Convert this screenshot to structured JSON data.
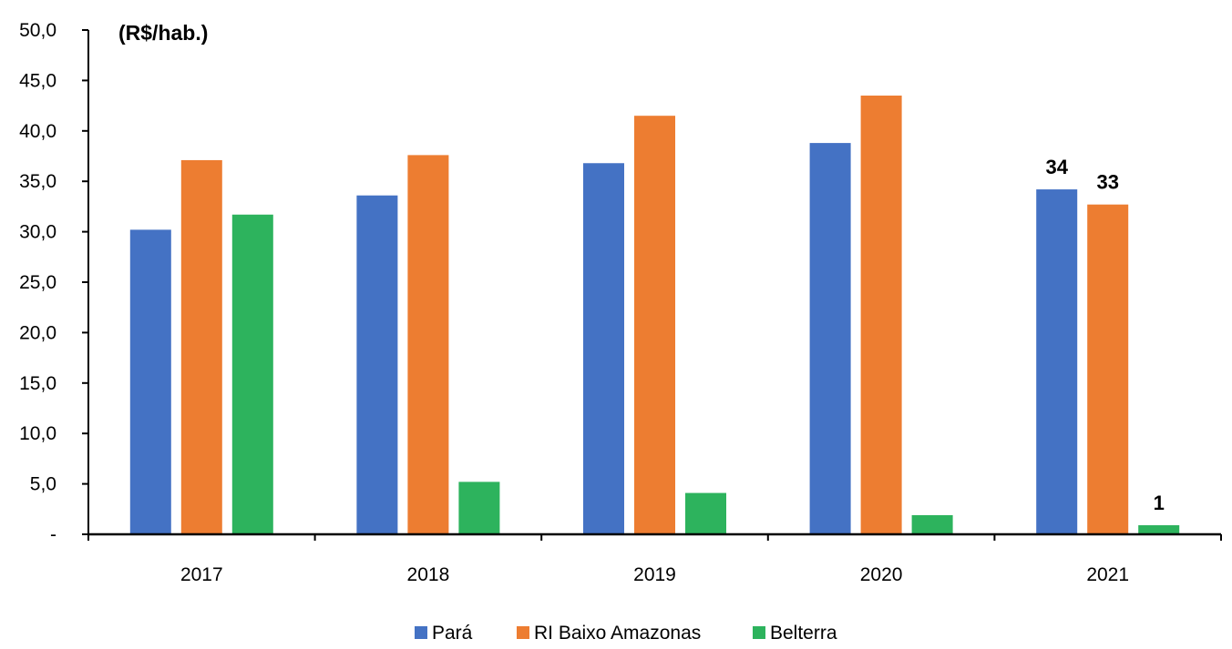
{
  "chart_data": {
    "type": "bar",
    "unit_label": "(R$/hab.)",
    "categories": [
      "2017",
      "2018",
      "2019",
      "2020",
      "2021"
    ],
    "y_tick_labels": [
      "-",
      "5,0",
      "10,0",
      "15,0",
      "20,0",
      "25,0",
      "30,0",
      "35,0",
      "40,0",
      "45,0",
      "50,0"
    ],
    "ylim": [
      0,
      50
    ],
    "grid": false,
    "legend_position": "bottom",
    "series": [
      {
        "name": "Pará",
        "color": "#4472c4",
        "values": [
          30.2,
          33.6,
          36.8,
          38.8,
          34.2
        ],
        "labels": [
          "",
          "",
          "",
          "",
          "34"
        ]
      },
      {
        "name": "RI Baixo Amazonas",
        "color": "#ed7d31",
        "values": [
          37.1,
          37.6,
          41.5,
          43.5,
          32.7
        ],
        "labels": [
          "",
          "",
          "",
          "",
          "33"
        ]
      },
      {
        "name": "Belterra",
        "color": "#2db35d",
        "values": [
          31.7,
          5.2,
          4.1,
          1.9,
          0.9
        ],
        "labels": [
          "",
          "",
          "",
          "",
          "1"
        ]
      }
    ]
  }
}
